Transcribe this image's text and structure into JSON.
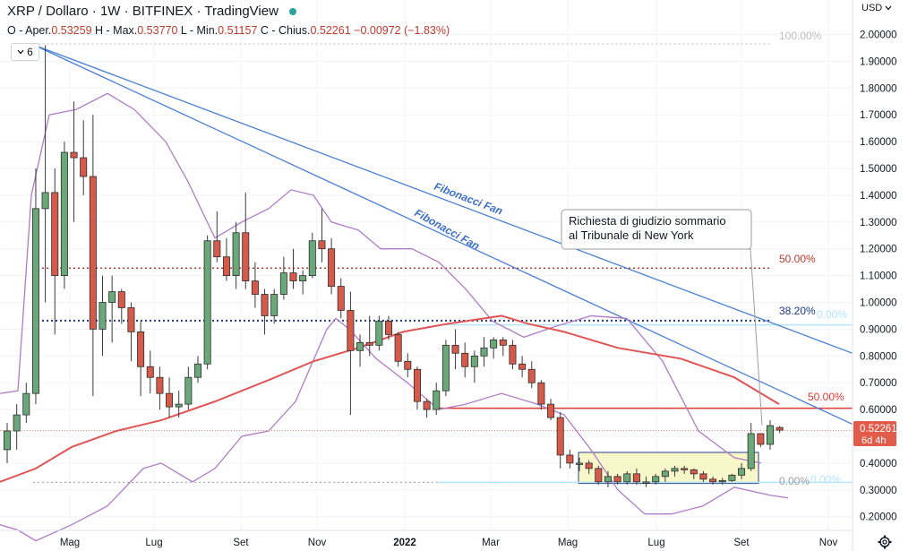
{
  "header": {
    "symbol": "XRP / Dollaro",
    "interval": "1W",
    "exchange": "BITFINEX",
    "source": "TradingView",
    "ohlc": {
      "open_label": "O - Aper.",
      "open": "0.53259",
      "high_label": "H - Max.",
      "high": "0.53770",
      "low_label": "L - Min.",
      "low": "0.51157",
      "close_label": "C - Chius.",
      "close": "0.52261",
      "change": "−0.00972 (−1.83%)"
    },
    "indicator_badge": "6",
    "currency_selector": "USD",
    "live_dot_color": "#26a69a"
  },
  "price_label": {
    "value": "0.52261",
    "countdown": "6d 4h"
  },
  "annotation": {
    "line1": "Richiesta di giudizio sommario",
    "line2": "al Tribunale di New York"
  },
  "fan_labels": [
    "Fibonacci Fan",
    "Fibonacci Fan"
  ],
  "fib_labels": [
    {
      "text": "100.00%",
      "price": 1.965,
      "color": "#bdbdbd"
    },
    {
      "text": "50.00%",
      "price": 1.128,
      "color": "#c0392b"
    },
    {
      "text": "38.20%",
      "price": 0.932,
      "color": "#1a3b8c"
    },
    {
      "text": "0.00%",
      "price": 0.328,
      "color": "#9e9e9e"
    },
    {
      "text": "50.00%",
      "price": 0.605,
      "color": "#e53935"
    },
    {
      "text": "0.00%",
      "price": 0.916,
      "color": "#b3e5fc"
    },
    {
      "text": "0.00%",
      "price": 0.328,
      "color": "#b3e5fc"
    }
  ],
  "colors": {
    "up": "#6aa87a",
    "down": "#d65a4a",
    "ma": "#e05555",
    "bb": "#b07cc6",
    "fan": "#4a7fd6",
    "box": "#f7f7c9"
  },
  "chart_data": {
    "type": "candlestick",
    "y_ticks": [
      "2.00000",
      "1.90000",
      "1.80000",
      "1.70000",
      "1.60000",
      "1.50000",
      "1.40000",
      "1.30000",
      "1.20000",
      "1.10000",
      "1.00000",
      "0.90000",
      "0.80000",
      "0.70000",
      "0.60000",
      "0.50000",
      "0.40000",
      "0.30000",
      "0.20000"
    ],
    "ylim": [
      0.15,
      2.05
    ],
    "x_ticks": [
      "Mag",
      "Lug",
      "Set",
      "Nov",
      "2022",
      "Mar",
      "Mag",
      "Lug",
      "Set",
      "Nov"
    ],
    "candles": [
      {
        "o": 0.45,
        "h": 0.55,
        "l": 0.4,
        "c": 0.52
      },
      {
        "o": 0.52,
        "h": 0.62,
        "l": 0.45,
        "c": 0.58
      },
      {
        "o": 0.58,
        "h": 0.7,
        "l": 0.55,
        "c": 0.66
      },
      {
        "o": 0.66,
        "h": 1.5,
        "l": 0.62,
        "c": 1.35
      },
      {
        "o": 1.35,
        "h": 1.96,
        "l": 1.0,
        "c": 1.41
      },
      {
        "o": 1.41,
        "h": 1.5,
        "l": 0.88,
        "c": 1.1
      },
      {
        "o": 1.1,
        "h": 1.6,
        "l": 1.05,
        "c": 1.56
      },
      {
        "o": 1.56,
        "h": 1.75,
        "l": 1.3,
        "c": 1.54
      },
      {
        "o": 1.54,
        "h": 1.68,
        "l": 1.4,
        "c": 1.47
      },
      {
        "o": 1.47,
        "h": 1.7,
        "l": 0.65,
        "c": 0.9
      },
      {
        "o": 0.9,
        "h": 1.1,
        "l": 0.8,
        "c": 1.0
      },
      {
        "o": 1.0,
        "h": 1.1,
        "l": 0.85,
        "c": 1.04
      },
      {
        "o": 1.04,
        "h": 1.05,
        "l": 0.92,
        "c": 0.98
      },
      {
        "o": 0.98,
        "h": 1.0,
        "l": 0.78,
        "c": 0.89
      },
      {
        "o": 0.89,
        "h": 0.93,
        "l": 0.65,
        "c": 0.76
      },
      {
        "o": 0.76,
        "h": 0.82,
        "l": 0.66,
        "c": 0.72
      },
      {
        "o": 0.72,
        "h": 0.76,
        "l": 0.6,
        "c": 0.66
      },
      {
        "o": 0.66,
        "h": 0.72,
        "l": 0.57,
        "c": 0.61
      },
      {
        "o": 0.61,
        "h": 0.67,
        "l": 0.57,
        "c": 0.62
      },
      {
        "o": 0.62,
        "h": 0.76,
        "l": 0.6,
        "c": 0.72
      },
      {
        "o": 0.72,
        "h": 0.8,
        "l": 0.7,
        "c": 0.77
      },
      {
        "o": 0.77,
        "h": 1.25,
        "l": 0.75,
        "c": 1.23
      },
      {
        "o": 1.23,
        "h": 1.34,
        "l": 1.15,
        "c": 1.17
      },
      {
        "o": 1.17,
        "h": 1.24,
        "l": 1.08,
        "c": 1.1
      },
      {
        "o": 1.1,
        "h": 1.3,
        "l": 1.05,
        "c": 1.26
      },
      {
        "o": 1.26,
        "h": 1.41,
        "l": 1.05,
        "c": 1.08
      },
      {
        "o": 1.08,
        "h": 1.15,
        "l": 0.98,
        "c": 1.03
      },
      {
        "o": 1.03,
        "h": 1.05,
        "l": 0.88,
        "c": 0.95
      },
      {
        "o": 0.95,
        "h": 1.05,
        "l": 0.92,
        "c": 1.03
      },
      {
        "o": 1.03,
        "h": 1.17,
        "l": 1.01,
        "c": 1.11
      },
      {
        "o": 1.11,
        "h": 1.2,
        "l": 1.05,
        "c": 1.08
      },
      {
        "o": 1.08,
        "h": 1.12,
        "l": 1.03,
        "c": 1.1
      },
      {
        "o": 1.1,
        "h": 1.26,
        "l": 1.09,
        "c": 1.23
      },
      {
        "o": 1.23,
        "h": 1.35,
        "l": 1.15,
        "c": 1.2
      },
      {
        "o": 1.2,
        "h": 1.24,
        "l": 1.03,
        "c": 1.06
      },
      {
        "o": 1.06,
        "h": 1.09,
        "l": 0.94,
        "c": 0.97
      },
      {
        "o": 0.97,
        "h": 1.04,
        "l": 0.58,
        "c": 0.82
      },
      {
        "o": 0.82,
        "h": 0.88,
        "l": 0.76,
        "c": 0.85
      },
      {
        "o": 0.85,
        "h": 0.95,
        "l": 0.8,
        "c": 0.84
      },
      {
        "o": 0.84,
        "h": 0.95,
        "l": 0.82,
        "c": 0.93
      },
      {
        "o": 0.93,
        "h": 0.95,
        "l": 0.86,
        "c": 0.88
      },
      {
        "o": 0.88,
        "h": 0.89,
        "l": 0.76,
        "c": 0.78
      },
      {
        "o": 0.78,
        "h": 0.81,
        "l": 0.72,
        "c": 0.75
      },
      {
        "o": 0.75,
        "h": 0.76,
        "l": 0.6,
        "c": 0.63
      },
      {
        "o": 0.63,
        "h": 0.64,
        "l": 0.57,
        "c": 0.6
      },
      {
        "o": 0.6,
        "h": 0.7,
        "l": 0.58,
        "c": 0.67
      },
      {
        "o": 0.67,
        "h": 0.86,
        "l": 0.65,
        "c": 0.84
      },
      {
        "o": 0.84,
        "h": 0.9,
        "l": 0.75,
        "c": 0.81
      },
      {
        "o": 0.81,
        "h": 0.85,
        "l": 0.72,
        "c": 0.76
      },
      {
        "o": 0.76,
        "h": 0.82,
        "l": 0.7,
        "c": 0.8
      },
      {
        "o": 0.8,
        "h": 0.87,
        "l": 0.76,
        "c": 0.83
      },
      {
        "o": 0.83,
        "h": 0.87,
        "l": 0.79,
        "c": 0.86
      },
      {
        "o": 0.86,
        "h": 0.87,
        "l": 0.8,
        "c": 0.84
      },
      {
        "o": 0.84,
        "h": 0.86,
        "l": 0.75,
        "c": 0.77
      },
      {
        "o": 0.77,
        "h": 0.8,
        "l": 0.72,
        "c": 0.75
      },
      {
        "o": 0.75,
        "h": 0.78,
        "l": 0.68,
        "c": 0.7
      },
      {
        "o": 0.7,
        "h": 0.71,
        "l": 0.6,
        "c": 0.62
      },
      {
        "o": 0.62,
        "h": 0.64,
        "l": 0.56,
        "c": 0.57
      },
      {
        "o": 0.57,
        "h": 0.59,
        "l": 0.38,
        "c": 0.43
      },
      {
        "o": 0.43,
        "h": 0.45,
        "l": 0.38,
        "c": 0.4
      },
      {
        "o": 0.4,
        "h": 0.42,
        "l": 0.37,
        "c": 0.4
      },
      {
        "o": 0.4,
        "h": 0.41,
        "l": 0.36,
        "c": 0.38
      },
      {
        "o": 0.38,
        "h": 0.39,
        "l": 0.32,
        "c": 0.33
      },
      {
        "o": 0.33,
        "h": 0.37,
        "l": 0.31,
        "c": 0.35
      },
      {
        "o": 0.35,
        "h": 0.36,
        "l": 0.32,
        "c": 0.33
      },
      {
        "o": 0.33,
        "h": 0.37,
        "l": 0.32,
        "c": 0.36
      },
      {
        "o": 0.36,
        "h": 0.38,
        "l": 0.32,
        "c": 0.33
      },
      {
        "o": 0.33,
        "h": 0.35,
        "l": 0.31,
        "c": 0.33
      },
      {
        "o": 0.33,
        "h": 0.36,
        "l": 0.32,
        "c": 0.35
      },
      {
        "o": 0.35,
        "h": 0.38,
        "l": 0.33,
        "c": 0.37
      },
      {
        "o": 0.37,
        "h": 0.39,
        "l": 0.35,
        "c": 0.38
      },
      {
        "o": 0.38,
        "h": 0.39,
        "l": 0.36,
        "c": 0.375
      },
      {
        "o": 0.375,
        "h": 0.38,
        "l": 0.34,
        "c": 0.36
      },
      {
        "o": 0.36,
        "h": 0.37,
        "l": 0.33,
        "c": 0.34
      },
      {
        "o": 0.34,
        "h": 0.35,
        "l": 0.32,
        "c": 0.33
      },
      {
        "o": 0.33,
        "h": 0.345,
        "l": 0.32,
        "c": 0.335
      },
      {
        "o": 0.335,
        "h": 0.36,
        "l": 0.33,
        "c": 0.355
      },
      {
        "o": 0.355,
        "h": 0.4,
        "l": 0.34,
        "c": 0.38
      },
      {
        "o": 0.38,
        "h": 0.55,
        "l": 0.37,
        "c": 0.51
      },
      {
        "o": 0.51,
        "h": 0.51,
        "l": 0.46,
        "c": 0.47
      },
      {
        "o": 0.47,
        "h": 0.56,
        "l": 0.45,
        "c": 0.54
      },
      {
        "o": 0.533,
        "h": 0.538,
        "l": 0.512,
        "c": 0.523
      }
    ]
  }
}
